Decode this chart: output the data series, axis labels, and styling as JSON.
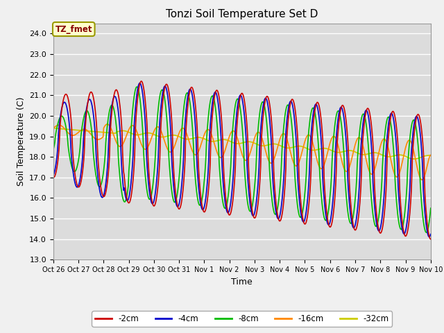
{
  "title": "Tonzi Soil Temperature Set D",
  "xlabel": "Time",
  "ylabel": "Soil Temperature (C)",
  "ylim": [
    13.0,
    24.5
  ],
  "yticks": [
    13.0,
    14.0,
    15.0,
    16.0,
    17.0,
    18.0,
    19.0,
    20.0,
    21.0,
    22.0,
    23.0,
    24.0
  ],
  "series_labels": [
    "-2cm",
    "-4cm",
    "-8cm",
    "-16cm",
    "-32cm"
  ],
  "series_colors": [
    "#cc0000",
    "#0000cc",
    "#00bb00",
    "#ff8800",
    "#cccc00"
  ],
  "xtick_labels": [
    "Oct 26",
    "Oct 27",
    "Oct 28",
    "Oct 29",
    "Oct 30",
    "Oct 31",
    "Nov 1",
    "Nov 2",
    "Nov 3",
    "Nov 4",
    "Nov 5",
    "Nov 6",
    "Nov 7",
    "Nov 8",
    "Nov 9",
    "Nov 10"
  ],
  "annotation_text": "TZ_fmet",
  "annotation_bg": "#ffffcc",
  "annotation_edge": "#999900",
  "linewidth": 1.2,
  "n_days": 15
}
